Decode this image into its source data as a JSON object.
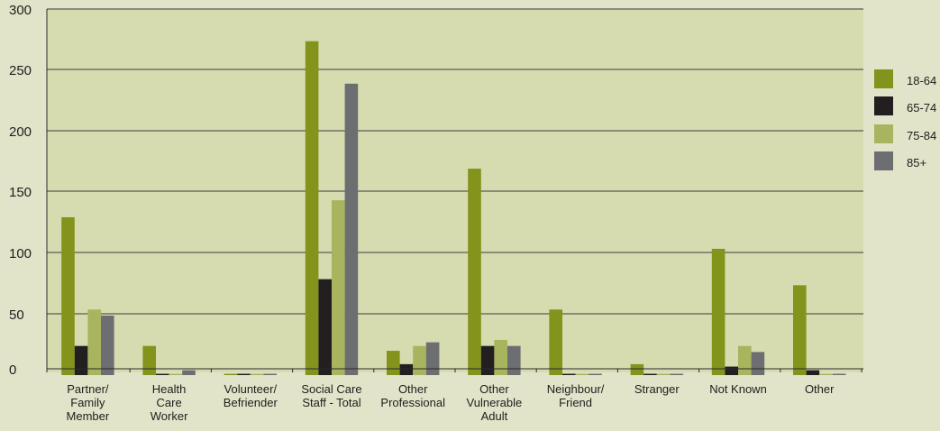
{
  "chart_data": {
    "type": "bar",
    "categories": [
      [
        "Partner/",
        "Family",
        "Member"
      ],
      [
        "Health",
        "Care",
        "Worker"
      ],
      [
        "Volunteer/",
        "Befriender"
      ],
      [
        "Social Care",
        "Staff - Total"
      ],
      [
        "Other",
        "Professional"
      ],
      [
        "Other",
        "Vulnerable",
        "Adult"
      ],
      [
        "Neighbour/",
        "Friend"
      ],
      [
        "Stranger"
      ],
      [
        "Not Known"
      ],
      [
        "Other"
      ]
    ],
    "series": [
      {
        "name": "18-64",
        "color": "#84931c",
        "values": [
          130,
          24,
          0,
          275,
          20,
          170,
          54,
          9,
          104,
          74
        ]
      },
      {
        "name": "65-74",
        "color": "#231f20",
        "values": [
          24,
          1,
          0,
          79,
          9,
          24,
          0,
          1,
          7,
          4
        ]
      },
      {
        "name": "75-84",
        "color": "#a8b45e",
        "values": [
          54,
          1,
          0,
          144,
          24,
          29,
          1,
          1,
          24,
          1
        ]
      },
      {
        "name": "85+",
        "color": "#6d6e71",
        "values": [
          49,
          4,
          0,
          240,
          27,
          24,
          1,
          0,
          19,
          1
        ]
      }
    ],
    "ylim": [
      0,
      300
    ],
    "yticks": [
      0,
      50,
      100,
      150,
      200,
      250,
      300
    ],
    "grid": true,
    "legend": "right"
  },
  "colors": {
    "background": "#e1e4c8",
    "plot_area": "#d7dcb0",
    "grid": "#3a3a3a"
  }
}
